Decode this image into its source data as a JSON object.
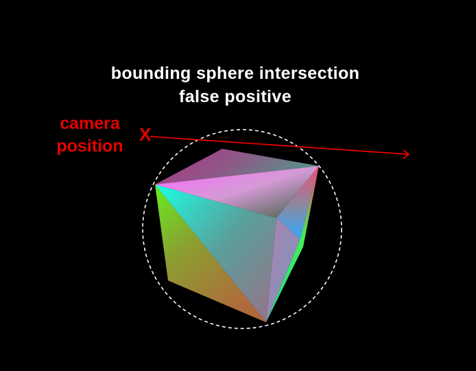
{
  "title": {
    "line1": "bounding sphere intersection",
    "line2": "false positive"
  },
  "camera": {
    "label_line1": "camera",
    "label_line2": "position",
    "marker": "X"
  },
  "colors": {
    "background": "#000000",
    "title_text": "#ffffff",
    "camera_and_ray": "#e60000",
    "bounding_sphere": "#ffffff"
  }
}
